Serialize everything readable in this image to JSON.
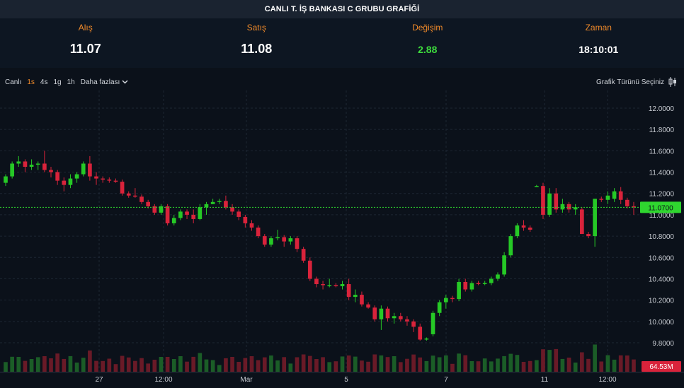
{
  "title": "CANLI T. İŞ BANKASI C GRUBU GRAFİĞİ",
  "quotes": {
    "bid_label": "Alış",
    "bid": "11.07",
    "ask_label": "Satış",
    "ask": "11.08",
    "change_label": "Değişim",
    "change": "2.88",
    "time_label": "Zaman",
    "time": "18:10:01"
  },
  "toolbar": {
    "live": "Canlı",
    "intervals": [
      "1s",
      "4s",
      "1g",
      "1h"
    ],
    "active_interval": "1s",
    "more": "Daha fazlası",
    "chart_type": "Grafik Türünü Seçiniz"
  },
  "colors": {
    "up": "#26c926",
    "down": "#d9233b",
    "accent": "#f08a2a",
    "price_line": "#2fd62f",
    "volume_up": "#1f6b2a",
    "volume_down": "#7a1c2a"
  },
  "chart_data": {
    "type": "candlestick",
    "y_ticks": [
      "12.0000",
      "11.8000",
      "11.6000",
      "11.4000",
      "11.2000",
      "11.0000",
      "10.8000",
      "10.6000",
      "10.4000",
      "10.2000",
      "10.0000",
      "9.8000"
    ],
    "ylim": [
      9.72,
      12.12
    ],
    "x_ticks": [
      "27",
      "12:00",
      "Mar",
      "5",
      "7",
      "11",
      "12:00"
    ],
    "last_price": 11.07,
    "last_price_label": "11.0700",
    "volume_label": "64.53M",
    "grid": true,
    "candles": [
      [
        11.3,
        11.38,
        11.27,
        11.36
      ],
      [
        11.36,
        11.5,
        11.34,
        11.48
      ],
      [
        11.48,
        11.55,
        11.45,
        11.5
      ],
      [
        11.5,
        11.52,
        11.4,
        11.45
      ],
      [
        11.45,
        11.52,
        11.42,
        11.47
      ],
      [
        11.47,
        11.5,
        11.42,
        11.48
      ],
      [
        11.48,
        11.6,
        11.4,
        11.42
      ],
      [
        11.42,
        11.45,
        11.35,
        11.4
      ],
      [
        11.4,
        11.42,
        11.28,
        11.32
      ],
      [
        11.32,
        11.35,
        11.22,
        11.28
      ],
      [
        11.28,
        11.38,
        11.25,
        11.34
      ],
      [
        11.34,
        11.4,
        11.3,
        11.38
      ],
      [
        11.38,
        11.5,
        11.36,
        11.48
      ],
      [
        11.48,
        11.55,
        11.32,
        11.36
      ],
      [
        11.36,
        11.4,
        11.28,
        11.34
      ],
      [
        11.34,
        11.36,
        11.3,
        11.33
      ],
      [
        11.33,
        11.35,
        11.3,
        11.32
      ],
      [
        11.32,
        11.34,
        11.3,
        11.31
      ],
      [
        11.31,
        11.33,
        11.18,
        11.2
      ],
      [
        11.2,
        11.22,
        11.16,
        11.18
      ],
      [
        11.18,
        11.25,
        11.16,
        11.17
      ],
      [
        11.17,
        11.19,
        11.1,
        11.12
      ],
      [
        11.12,
        11.14,
        11.06,
        11.08
      ],
      [
        11.08,
        11.1,
        11.0,
        11.02
      ],
      [
        11.02,
        11.1,
        11.0,
        11.08
      ],
      [
        11.08,
        11.1,
        10.9,
        10.92
      ],
      [
        10.92,
        11.0,
        10.9,
        10.97
      ],
      [
        10.97,
        11.05,
        10.95,
        11.03
      ],
      [
        11.03,
        11.05,
        10.96,
        11.0
      ],
      [
        11.0,
        11.05,
        10.92,
        10.96
      ],
      [
        10.96,
        11.1,
        10.95,
        11.07
      ],
      [
        11.07,
        11.12,
        11.0,
        11.1
      ],
      [
        11.1,
        11.15,
        11.1,
        11.12
      ],
      [
        11.12,
        11.15,
        11.1,
        11.13
      ],
      [
        11.13,
        11.18,
        11.05,
        11.07
      ],
      [
        11.07,
        11.1,
        11.0,
        11.03
      ],
      [
        11.03,
        11.05,
        10.95,
        10.98
      ],
      [
        10.98,
        11.0,
        10.88,
        10.92
      ],
      [
        10.92,
        10.95,
        10.85,
        10.88
      ],
      [
        10.88,
        10.9,
        10.78,
        10.8
      ],
      [
        10.8,
        10.82,
        10.7,
        10.72
      ],
      [
        10.72,
        10.8,
        10.7,
        10.78
      ],
      [
        10.78,
        10.86,
        10.76,
        10.79
      ],
      [
        10.79,
        10.81,
        10.7,
        10.75
      ],
      [
        10.75,
        10.8,
        10.72,
        10.78
      ],
      [
        10.78,
        10.8,
        10.65,
        10.68
      ],
      [
        10.68,
        10.7,
        10.55,
        10.57
      ],
      [
        10.57,
        10.6,
        10.38,
        10.4
      ],
      [
        10.4,
        10.42,
        10.32,
        10.35
      ],
      [
        10.35,
        10.38,
        10.3,
        10.34
      ],
      [
        10.34,
        10.4,
        10.32,
        10.34
      ],
      [
        10.34,
        10.36,
        10.32,
        10.33
      ],
      [
        10.33,
        10.38,
        10.3,
        10.35
      ],
      [
        10.35,
        10.4,
        10.2,
        10.23
      ],
      [
        10.23,
        10.3,
        10.18,
        10.25
      ],
      [
        10.25,
        10.28,
        10.14,
        10.16
      ],
      [
        10.16,
        10.18,
        10.12,
        10.13
      ],
      [
        10.13,
        10.15,
        10.0,
        10.02
      ],
      [
        10.02,
        10.15,
        9.92,
        10.12
      ],
      [
        10.12,
        10.14,
        10.0,
        10.03
      ],
      [
        10.03,
        10.08,
        9.98,
        10.05
      ],
      [
        10.05,
        10.08,
        10.0,
        10.02
      ],
      [
        10.02,
        10.05,
        9.96,
        10.0
      ],
      [
        10.0,
        10.02,
        9.9,
        9.95
      ],
      [
        9.95,
        9.98,
        9.82,
        9.83
      ],
      [
        9.83,
        9.85,
        9.82,
        9.84
      ],
      [
        9.88,
        10.1,
        9.86,
        10.08
      ],
      [
        10.08,
        10.2,
        10.05,
        10.18
      ],
      [
        10.18,
        10.25,
        10.12,
        10.22
      ],
      [
        10.22,
        10.24,
        10.18,
        10.21
      ],
      [
        10.21,
        10.4,
        10.19,
        10.37
      ],
      [
        10.37,
        10.4,
        10.28,
        10.3
      ],
      [
        10.3,
        10.38,
        10.28,
        10.36
      ],
      [
        10.36,
        10.38,
        10.34,
        10.35
      ],
      [
        10.35,
        10.38,
        10.34,
        10.36
      ],
      [
        10.36,
        10.42,
        10.34,
        10.4
      ],
      [
        10.4,
        10.46,
        10.38,
        10.44
      ],
      [
        10.44,
        10.65,
        10.42,
        10.62
      ],
      [
        10.62,
        10.82,
        10.6,
        10.8
      ],
      [
        10.8,
        10.92,
        10.78,
        10.9
      ],
      [
        10.9,
        10.95,
        10.85,
        10.88
      ],
      [
        10.88,
        10.9,
        10.84,
        10.86
      ],
      [
        11.27,
        11.28,
        11.26,
        11.27
      ],
      [
        11.27,
        11.3,
        10.96,
        11.0
      ],
      [
        11.0,
        11.25,
        10.98,
        11.2
      ],
      [
        11.2,
        11.25,
        11.02,
        11.05
      ],
      [
        11.05,
        11.15,
        11.02,
        11.1
      ],
      [
        11.1,
        11.12,
        11.02,
        11.05
      ],
      [
        11.05,
        11.1,
        11.0,
        11.07
      ],
      [
        11.05,
        11.07,
        10.82,
        10.82
      ],
      [
        10.82,
        10.84,
        10.78,
        10.8
      ],
      [
        10.8,
        11.15,
        10.7,
        11.15
      ],
      [
        11.15,
        11.17,
        11.12,
        11.14
      ],
      [
        11.14,
        11.22,
        11.1,
        11.18
      ],
      [
        11.15,
        11.25,
        11.12,
        11.22
      ],
      [
        11.22,
        11.26,
        11.1,
        11.14
      ],
      [
        11.14,
        11.16,
        11.06,
        11.08
      ],
      [
        11.08,
        11.12,
        11.0,
        11.07
      ]
    ]
  }
}
